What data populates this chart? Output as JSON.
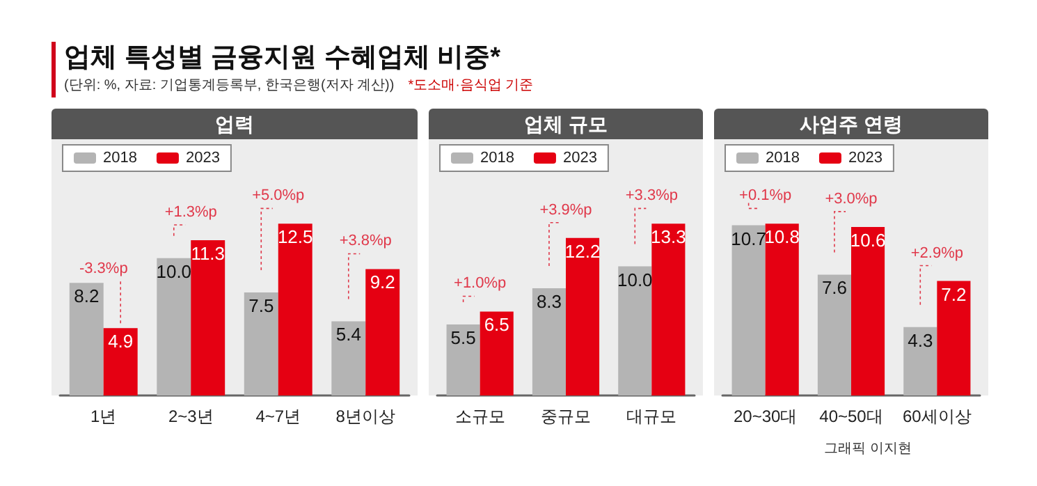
{
  "chart_data": [
    {
      "type": "bar",
      "title": "업체 특성별 금융지원 수혜업체 비중*",
      "subtitle": "업력",
      "annotations": [
        "(단위: %, 자료: 기업통계등록부, 한국은행(저자 계산))",
        "*도소매·음식업 기준",
        "그래픽 이지현",
        "-3.3%p",
        "+1.3%p",
        "+5.0%p",
        "+3.8%p"
      ],
      "categories": [
        "1년",
        "2~3년",
        "4~7년",
        "8년이상"
      ],
      "series": [
        {
          "name": "2018",
          "color": "#b4b4b4",
          "values": [
            8.2,
            10.0,
            7.5,
            5.4
          ],
          "value_labels": [
            "8.2",
            "10.0",
            "7.5",
            "5.4"
          ]
        },
        {
          "name": "2023",
          "color": "#e50012",
          "values": [
            4.9,
            11.3,
            12.5,
            9.2
          ],
          "value_labels": [
            "4.9",
            "11.3",
            "12.5",
            "9.2"
          ]
        }
      ],
      "legend": "top left",
      "tick_labels": "x"
    },
    {
      "type": "bar",
      "subtitle": "업체 규모",
      "annotations": [
        "+1.0%p",
        "+3.9%p",
        "+3.3%p"
      ],
      "categories": [
        "소규모",
        "중규모",
        "대규모"
      ],
      "series": [
        {
          "name": "2018",
          "color": "#b4b4b4",
          "values": [
            5.5,
            8.3,
            10.0
          ],
          "value_labels": [
            "5.5",
            "8.3",
            "10.0"
          ]
        },
        {
          "name": "2023",
          "color": "#e50012",
          "values": [
            6.5,
            12.2,
            13.3
          ],
          "value_labels": [
            "6.5",
            "12.2",
            "13.3"
          ]
        }
      ],
      "legend": "top left",
      "tick_labels": "x"
    },
    {
      "type": "bar",
      "subtitle": "사업주 연령",
      "annotations": [
        "+0.1%p",
        "+3.0%p",
        "+2.9%p"
      ],
      "categories": [
        "20~30대",
        "40~50대",
        "60세이상"
      ],
      "series": [
        {
          "name": "2018",
          "color": "#b4b4b4",
          "values": [
            10.7,
            7.6,
            4.3
          ],
          "value_labels": [
            "10.7",
            "7.6",
            "4.3"
          ]
        },
        {
          "name": "2023",
          "color": "#e50012",
          "values": [
            10.8,
            10.6,
            7.2
          ],
          "value_labels": [
            "10.8",
            "10.6",
            "7.2"
          ]
        }
      ],
      "legend": "top left",
      "tick_labels": "x"
    }
  ]
}
